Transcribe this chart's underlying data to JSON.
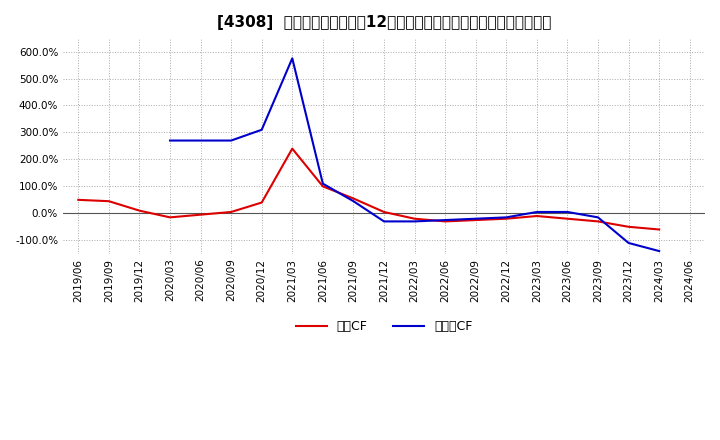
{
  "title": "[4308]  キャッシュフローの12か月移動合計の対前年同期増減率の推移",
  "legend_labels": [
    "営業CF",
    "フリーCF"
  ],
  "line_colors": [
    "#dd0000",
    "#0000cc"
  ],
  "ylim": [
    -150,
    650
  ],
  "yticks": [
    -100,
    0,
    100,
    200,
    300,
    400,
    500,
    600
  ],
  "ytick_labels": [
    "-100.0%",
    "0.0%",
    "100.0%",
    "200.0%",
    "300.0%",
    "400.0%",
    "500.0%",
    "600.0%"
  ],
  "dates": [
    "2019/06",
    "2019/09",
    "2019/12",
    "2020/03",
    "2020/06",
    "2020/09",
    "2020/12",
    "2021/03",
    "2021/06",
    "2021/09",
    "2021/12",
    "2022/03",
    "2022/06",
    "2022/09",
    "2022/12",
    "2023/03",
    "2023/06",
    "2023/09",
    "2023/12",
    "2024/03",
    "2024/06"
  ],
  "eigyo_cf": [
    50,
    45,
    10,
    -15,
    -5,
    5,
    40,
    240,
    100,
    55,
    5,
    -20,
    -30,
    -25,
    -20,
    -10,
    -20,
    -30,
    -50,
    -60,
    null
  ],
  "free_cf": [
    null,
    null,
    null,
    270,
    270,
    270,
    310,
    575,
    110,
    45,
    -30,
    -30,
    -25,
    -20,
    -15,
    5,
    5,
    -15,
    -110,
    -140,
    null
  ],
  "background_color": "#ffffff",
  "grid_color": "#aaaaaa",
  "title_fontsize": 11,
  "tick_fontsize": 7.5
}
